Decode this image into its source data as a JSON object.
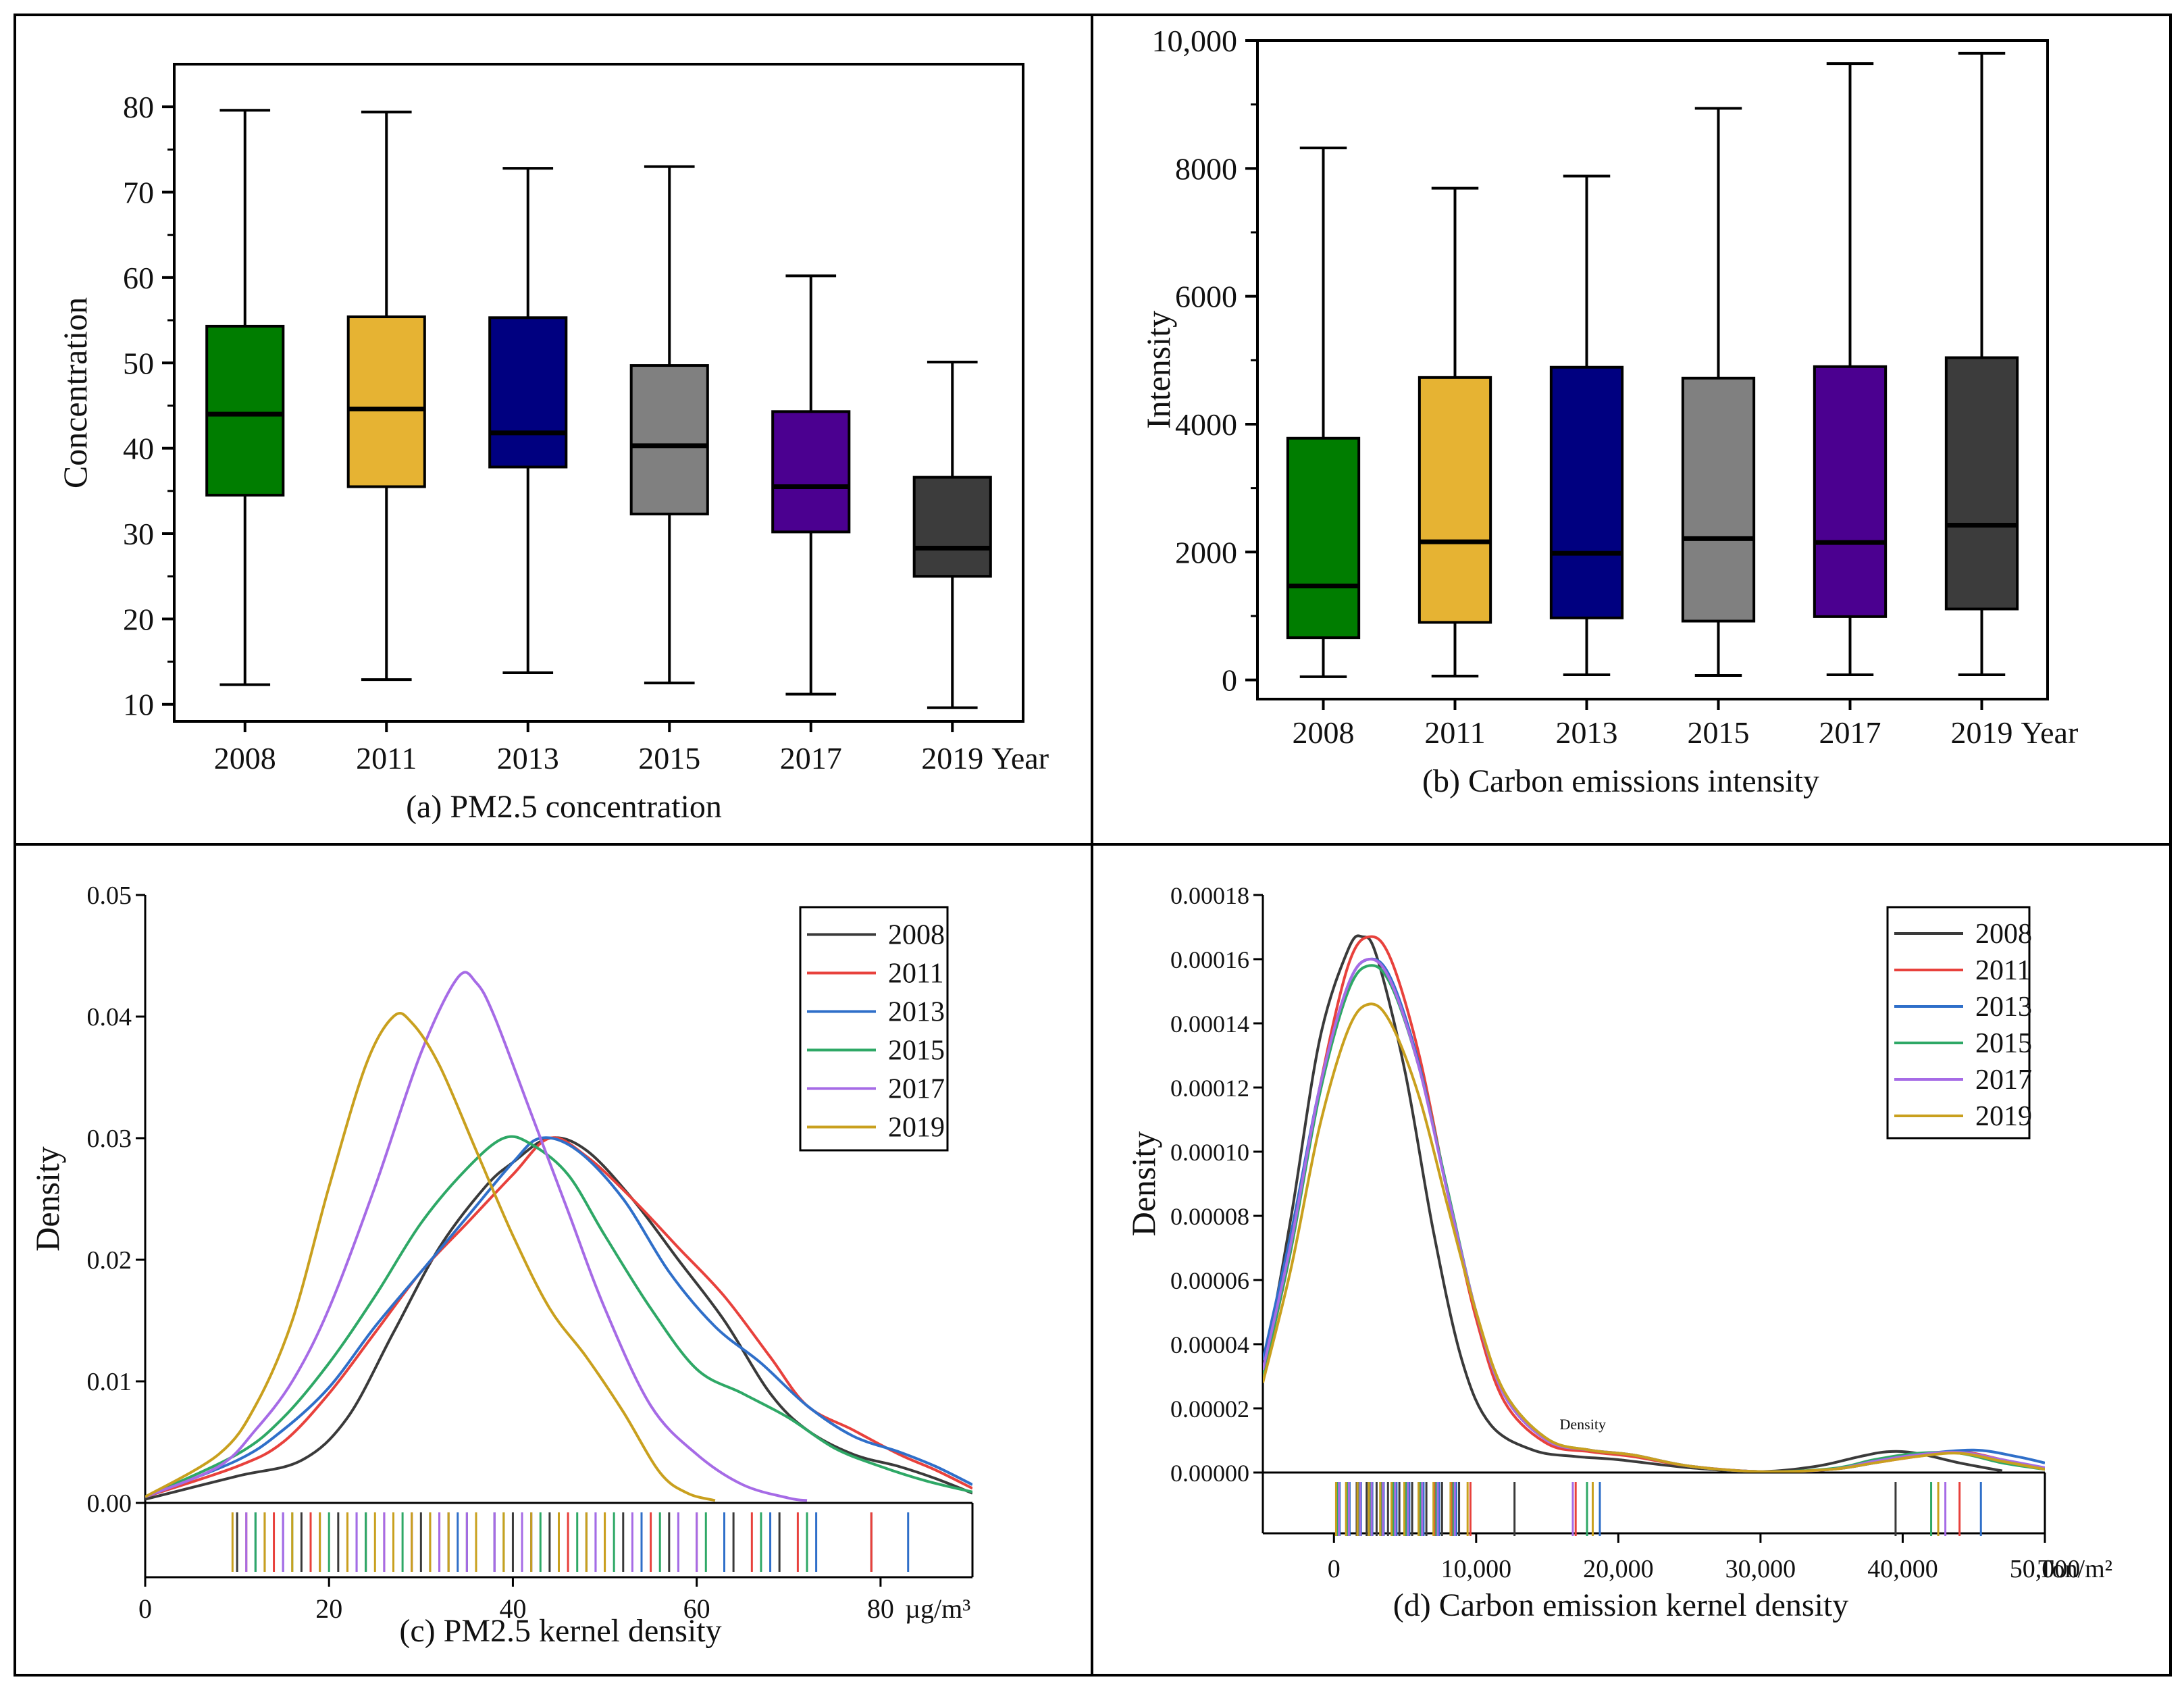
{
  "figure": {
    "colors": {
      "2008": "#3a3a3a",
      "2011": "#e8413c",
      "2013": "#2f6fc9",
      "2015": "#2ea866",
      "2017": "#a66be6",
      "2019": "#c9a01e"
    },
    "box_fill": {
      "2008": "#007d00",
      "2011": "#e6b333",
      "2013": "#000080",
      "2015": "#808080",
      "2017": "#4b0090",
      "2019": "#3c3c3c"
    }
  },
  "chart_data": [
    {
      "id": "a",
      "type": "box",
      "caption": "(a) PM2.5 concentration",
      "ylabel": "Concentration",
      "xunit": "Year",
      "ylim": [
        8,
        85
      ],
      "yticks": [
        10,
        20,
        30,
        40,
        50,
        60,
        70,
        80
      ],
      "categories": [
        "2008",
        "2011",
        "2013",
        "2015",
        "2017",
        "2019"
      ],
      "boxes": [
        {
          "year": "2008",
          "min": 12.3,
          "q1": 34.5,
          "median": 44.0,
          "q3": 54.3,
          "max": 79.6
        },
        {
          "year": "2011",
          "min": 12.9,
          "q1": 35.5,
          "median": 44.6,
          "q3": 55.4,
          "max": 79.4
        },
        {
          "year": "2013",
          "min": 13.7,
          "q1": 37.8,
          "median": 41.8,
          "q3": 55.3,
          "max": 72.8
        },
        {
          "year": "2015",
          "min": 12.5,
          "q1": 32.3,
          "median": 40.3,
          "q3": 49.7,
          "max": 73.0
        },
        {
          "year": "2017",
          "min": 11.2,
          "q1": 30.2,
          "median": 35.5,
          "q3": 44.3,
          "max": 60.2
        },
        {
          "year": "2019",
          "min": 9.6,
          "q1": 25.0,
          "median": 28.3,
          "q3": 36.6,
          "max": 50.1
        }
      ]
    },
    {
      "id": "b",
      "type": "box",
      "caption": "(b) Carbon emissions intensity",
      "ylabel": "Intensity",
      "xunit": "Year",
      "ylim": [
        -300,
        10000
      ],
      "yticks": [
        0,
        2000,
        4000,
        6000,
        8000,
        10000
      ],
      "ytick_labels": [
        "0",
        "2000",
        "4000",
        "6000",
        "8000",
        "10,000"
      ],
      "categories": [
        "2008",
        "2011",
        "2013",
        "2015",
        "2017",
        "2019"
      ],
      "boxes": [
        {
          "year": "2008",
          "min": 50,
          "q1": 660,
          "median": 1470,
          "q3": 3780,
          "max": 8320
        },
        {
          "year": "2011",
          "min": 60,
          "q1": 900,
          "median": 2160,
          "q3": 4730,
          "max": 7690
        },
        {
          "year": "2013",
          "min": 80,
          "q1": 970,
          "median": 1980,
          "q3": 4890,
          "max": 7880
        },
        {
          "year": "2015",
          "min": 70,
          "q1": 920,
          "median": 2210,
          "q3": 4720,
          "max": 8940
        },
        {
          "year": "2017",
          "min": 80,
          "q1": 990,
          "median": 2150,
          "q3": 4900,
          "max": 9640
        },
        {
          "year": "2019",
          "min": 80,
          "q1": 1110,
          "median": 2420,
          "q3": 5040,
          "max": 9800
        }
      ]
    },
    {
      "id": "c",
      "type": "line",
      "caption": "(c) PM2.5 kernel density",
      "ylabel": "Density",
      "xunit": "µg/m³",
      "xlim": [
        0,
        90
      ],
      "ylim": [
        0,
        0.05
      ],
      "xticks": [
        0,
        20,
        40,
        60,
        80
      ],
      "yticks": [
        0,
        0.01,
        0.02,
        0.03,
        0.04,
        0.05
      ],
      "ytick_labels": [
        "0.00",
        "0.01",
        "0.02",
        "0.03",
        "0.04",
        "0.05"
      ],
      "legend": [
        "2008",
        "2011",
        "2013",
        "2015",
        "2017",
        "2019"
      ],
      "series": [
        {
          "name": "2008",
          "x": [
            0,
            10,
            17,
            22,
            27,
            32,
            37,
            40,
            44,
            48,
            53,
            58,
            63,
            68,
            72,
            77,
            82,
            86,
            90
          ],
          "y": [
            0.0003,
            0.0022,
            0.0035,
            0.007,
            0.014,
            0.021,
            0.026,
            0.028,
            0.03,
            0.029,
            0.025,
            0.02,
            0.015,
            0.009,
            0.006,
            0.004,
            0.003,
            0.002,
            0.0008
          ]
        },
        {
          "name": "2011",
          "x": [
            0,
            10,
            15,
            20,
            25,
            30,
            35,
            40,
            44,
            48,
            53,
            58,
            63,
            68,
            72,
            77,
            82,
            86,
            90
          ],
          "y": [
            0.0005,
            0.003,
            0.005,
            0.009,
            0.014,
            0.019,
            0.023,
            0.027,
            0.03,
            0.0285,
            0.025,
            0.021,
            0.017,
            0.012,
            0.008,
            0.006,
            0.004,
            0.0027,
            0.0012
          ]
        },
        {
          "name": "2013",
          "x": [
            0,
            10,
            15,
            20,
            25,
            30,
            35,
            40,
            43,
            47,
            52,
            57,
            62,
            67,
            72,
            77,
            82,
            86,
            90
          ],
          "y": [
            0.0005,
            0.0035,
            0.006,
            0.0095,
            0.0145,
            0.019,
            0.0235,
            0.028,
            0.03,
            0.029,
            0.025,
            0.019,
            0.0145,
            0.0115,
            0.008,
            0.0055,
            0.0042,
            0.003,
            0.0015
          ]
        },
        {
          "name": "2015",
          "x": [
            0,
            10,
            15,
            20,
            25,
            30,
            35,
            39,
            42,
            46,
            50,
            55,
            60,
            65,
            70,
            75,
            80,
            85,
            90
          ],
          "y": [
            0.0005,
            0.004,
            0.007,
            0.0115,
            0.017,
            0.023,
            0.0275,
            0.03,
            0.0295,
            0.027,
            0.022,
            0.016,
            0.011,
            0.009,
            0.007,
            0.0045,
            0.003,
            0.0018,
            0.0009
          ]
        },
        {
          "name": "2017",
          "x": [
            0,
            8,
            12,
            16,
            20,
            25,
            30,
            34,
            36,
            38,
            42,
            46,
            50,
            55,
            60,
            65,
            70,
            72
          ],
          "y": [
            0.0005,
            0.003,
            0.006,
            0.01,
            0.016,
            0.026,
            0.037,
            0.0432,
            0.0428,
            0.04,
            0.032,
            0.024,
            0.016,
            0.008,
            0.004,
            0.0015,
            0.0004,
            0.0002
          ]
        },
        {
          "name": "2019",
          "x": [
            0,
            8,
            12,
            16,
            20,
            24,
            27,
            29,
            32,
            36,
            40,
            44,
            48,
            52,
            56,
            59,
            62
          ],
          "y": [
            0.0005,
            0.004,
            0.008,
            0.015,
            0.026,
            0.036,
            0.04,
            0.0395,
            0.036,
            0.029,
            0.022,
            0.016,
            0.012,
            0.0075,
            0.0025,
            0.0008,
            0.0002
          ]
        }
      ],
      "rug": [
        {
          "year": "2008",
          "x": [
            10,
            13,
            17,
            21,
            24,
            27,
            30,
            33,
            36,
            40,
            44,
            48,
            52,
            57,
            64,
            69,
            79
          ]
        },
        {
          "year": "2011",
          "x": [
            11,
            14,
            18,
            22,
            26,
            29,
            32,
            35,
            38,
            42,
            46,
            50,
            55,
            60,
            66,
            71,
            79
          ]
        },
        {
          "year": "2013",
          "x": [
            12,
            15,
            19,
            23,
            27,
            31,
            34,
            38,
            42,
            45,
            49,
            54,
            58,
            63,
            68,
            73,
            83
          ]
        },
        {
          "year": "2015",
          "x": [
            12,
            16,
            20,
            24,
            28,
            31,
            35,
            39,
            43,
            47,
            51,
            56,
            61,
            67,
            72
          ]
        },
        {
          "year": "2017",
          "x": [
            11,
            15,
            19,
            23,
            26,
            29,
            32,
            35,
            38,
            41,
            45,
            49,
            53,
            58,
            60
          ]
        },
        {
          "year": "2019",
          "x": [
            9.5,
            13,
            16,
            19,
            22,
            25,
            27,
            29,
            31,
            33,
            36,
            39,
            42,
            45,
            48,
            50
          ]
        }
      ]
    },
    {
      "id": "d",
      "type": "line",
      "caption": "(d) Carbon emission kernel density",
      "ylabel": "Density",
      "xunit": "Ton/m²",
      "annotation": "Density",
      "xlim": [
        -5000,
        50000
      ],
      "ylim": [
        0,
        0.00018
      ],
      "xticks": [
        0,
        10000,
        20000,
        30000,
        40000,
        50000
      ],
      "xtick_labels": [
        "0",
        "10,000",
        "20,000",
        "30,000",
        "40,000",
        "50,000"
      ],
      "yticks": [
        0,
        2e-05,
        4e-05,
        6e-05,
        8e-05,
        0.0001,
        0.00012,
        0.00014,
        0.00016,
        0.00018
      ],
      "ytick_labels": [
        "0.00000",
        "0.00002",
        "0.00004",
        "0.00006",
        "0.00008",
        "0.00010",
        "0.00012",
        "0.00014",
        "0.00016",
        "0.00018"
      ],
      "legend": [
        "2008",
        "2011",
        "2013",
        "2015",
        "2017",
        "2019"
      ],
      "series": [
        {
          "name": "2008",
          "x": [
            -5000,
            -3000,
            -1000,
            1000,
            2000,
            3000,
            5000,
            7000,
            9000,
            11000,
            14000,
            17000,
            20000,
            25000,
            30000,
            34000,
            37000,
            39000,
            41000,
            44000,
            47000
          ],
          "y": [
            3e-05,
            8e-05,
            0.000135,
            0.000163,
            0.000167,
            0.000161,
            0.000125,
            7.5e-05,
            3.5e-05,
            1.5e-05,
            7e-06,
            5e-06,
            4e-06,
            1.5e-06,
            3e-07,
            2e-06,
            5e-06,
            6.5e-06,
            6e-06,
            3e-06,
            5e-07
          ]
        },
        {
          "name": "2011",
          "x": [
            -5000,
            -3000,
            -1000,
            1000,
            2500,
            4000,
            6000,
            8000,
            10000,
            12000,
            15000,
            18000,
            21000,
            25000,
            30000,
            35000,
            38000,
            41000,
            44000,
            47000,
            50000
          ],
          "y": [
            3e-05,
            7e-05,
            0.00012,
            0.000158,
            0.000167,
            0.00016,
            0.00013,
            8.7e-05,
            4.8e-05,
            2.2e-05,
            9e-06,
            6.5e-06,
            5e-06,
            2e-06,
            3e-07,
            1e-06,
            3e-06,
            5e-06,
            6.5e-06,
            4e-06,
            1e-06
          ]
        },
        {
          "name": "2013",
          "x": [
            -5000,
            -3000,
            -1000,
            1000,
            2500,
            4000,
            6000,
            8000,
            10000,
            12000,
            15000,
            18000,
            21000,
            25000,
            30000,
            35000,
            38000,
            41000,
            45000,
            48000,
            50000
          ],
          "y": [
            3.5e-05,
            7.5e-05,
            0.00012,
            0.000152,
            0.00016,
            0.000154,
            0.000127,
            8.7e-05,
            5e-05,
            2.4e-05,
            1e-05,
            7e-06,
            5.5e-06,
            2e-06,
            3e-07,
            1e-06,
            3e-06,
            5.5e-06,
            7e-06,
            5e-06,
            3e-06
          ]
        },
        {
          "name": "2015",
          "x": [
            -5000,
            -3000,
            -1000,
            1000,
            2500,
            4000,
            6000,
            8000,
            10000,
            12000,
            15000,
            18000,
            21000,
            25000,
            30000,
            35000,
            38000,
            41000,
            44000,
            47000,
            50000
          ],
          "y": [
            3e-05,
            7e-05,
            0.000118,
            0.00015,
            0.000158,
            0.000152,
            0.000126,
            8.8e-05,
            5e-05,
            2.5e-05,
            1.05e-05,
            7e-06,
            5.5e-06,
            2e-06,
            3e-07,
            1.2e-06,
            4e-06,
            6e-06,
            6e-06,
            3e-06,
            1e-06
          ]
        },
        {
          "name": "2017",
          "x": [
            -5000,
            -3000,
            -1000,
            1000,
            2500,
            4000,
            6000,
            8000,
            10000,
            12000,
            15000,
            18000,
            21000,
            25000,
            30000,
            35000,
            38000,
            41000,
            44000,
            47000,
            50000
          ],
          "y": [
            3.2e-05,
            7.2e-05,
            0.00012,
            0.000152,
            0.00016,
            0.000153,
            0.000126,
            8.7e-05,
            5e-05,
            2.4e-05,
            1e-05,
            7e-06,
            5.5e-06,
            2e-06,
            3e-07,
            1e-06,
            3.5e-06,
            5.5e-06,
            6.3e-06,
            4e-06,
            1.5e-06
          ]
        },
        {
          "name": "2019",
          "x": [
            -5000,
            -3000,
            -1000,
            1000,
            2500,
            4000,
            6000,
            8000,
            10000,
            12000,
            15000,
            18000,
            21000,
            25000,
            30000,
            35000,
            38000,
            41000,
            44000,
            47000,
            50000
          ],
          "y": [
            2.8e-05,
            6.4e-05,
            0.000108,
            0.000138,
            0.000146,
            0.00014,
            0.000117,
            8.3e-05,
            5e-05,
            2.5e-05,
            1.05e-05,
            7e-06,
            5.5e-06,
            2e-06,
            3e-07,
            1e-06,
            3e-06,
            5e-06,
            6e-06,
            3.5e-06,
            1e-06
          ]
        }
      ],
      "rug": [
        {
          "year": "2008",
          "x": [
            200,
            900,
            1600,
            2300,
            3000,
            3800,
            4600,
            5500,
            6500,
            7600,
            8800,
            12700,
            39500
          ]
        },
        {
          "year": "2011",
          "x": [
            300,
            1000,
            1700,
            2500,
            3300,
            4100,
            5000,
            6000,
            7100,
            8300,
            9600,
            17000,
            44000
          ]
        },
        {
          "year": "2013",
          "x": [
            400,
            1100,
            1900,
            2700,
            3500,
            4400,
            5300,
            6300,
            7400,
            8600,
            18700,
            45500
          ]
        },
        {
          "year": "2015",
          "x": [
            250,
            950,
            1800,
            2600,
            3400,
            4200,
            5100,
            6100,
            7200,
            8400,
            17800,
            42000
          ]
        },
        {
          "year": "2017",
          "x": [
            350,
            1050,
            1850,
            2650,
            3450,
            4300,
            5200,
            6200,
            7300,
            8500,
            16800,
            43000
          ]
        },
        {
          "year": "2019",
          "x": [
            150,
            850,
            1650,
            2450,
            3250,
            4050,
            4950,
            5950,
            7000,
            8200,
            9400,
            18200,
            42500
          ]
        }
      ]
    }
  ]
}
